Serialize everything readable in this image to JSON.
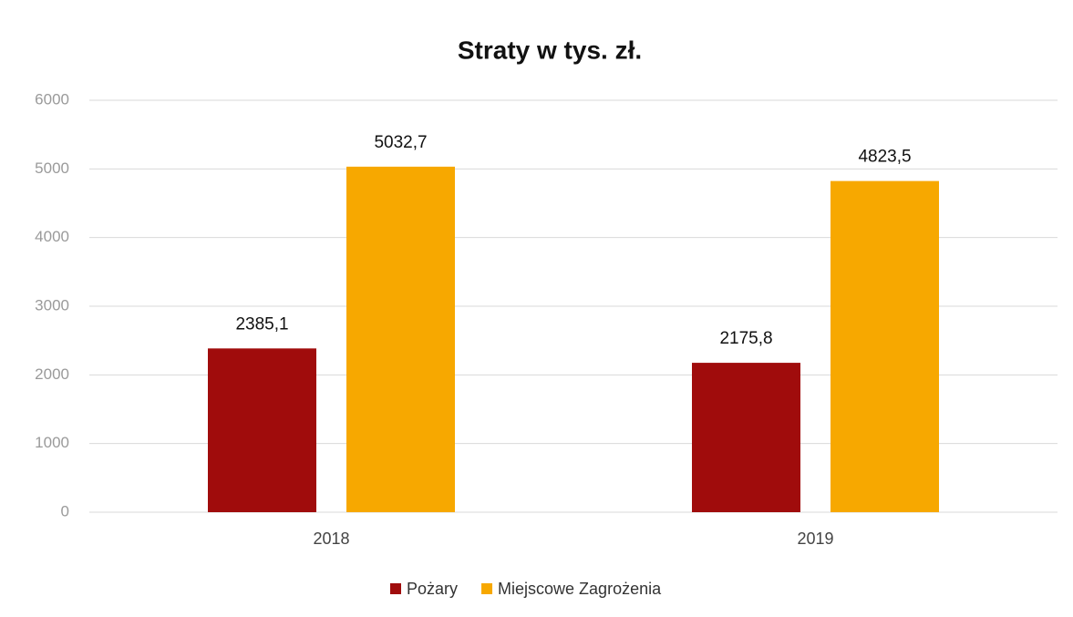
{
  "chart_data": {
    "type": "bar",
    "title": "Straty w tys. zł.",
    "categories": [
      "2018",
      "2019"
    ],
    "series": [
      {
        "name": "Pożary",
        "color": "#a00c0c",
        "values": [
          2385.1,
          2175.8
        ],
        "value_labels": [
          "2385,1",
          "2175,8"
        ]
      },
      {
        "name": "Miejscowe Zagrożenia",
        "color": "#f7a800",
        "values": [
          5032.7,
          4823.5
        ],
        "value_labels": [
          "5032,7",
          "4823,5"
        ]
      }
    ],
    "ylim": [
      0,
      6000
    ],
    "yticks": [
      0,
      1000,
      2000,
      3000,
      4000,
      5000,
      6000
    ],
    "grid": true,
    "legend": "bottom"
  }
}
